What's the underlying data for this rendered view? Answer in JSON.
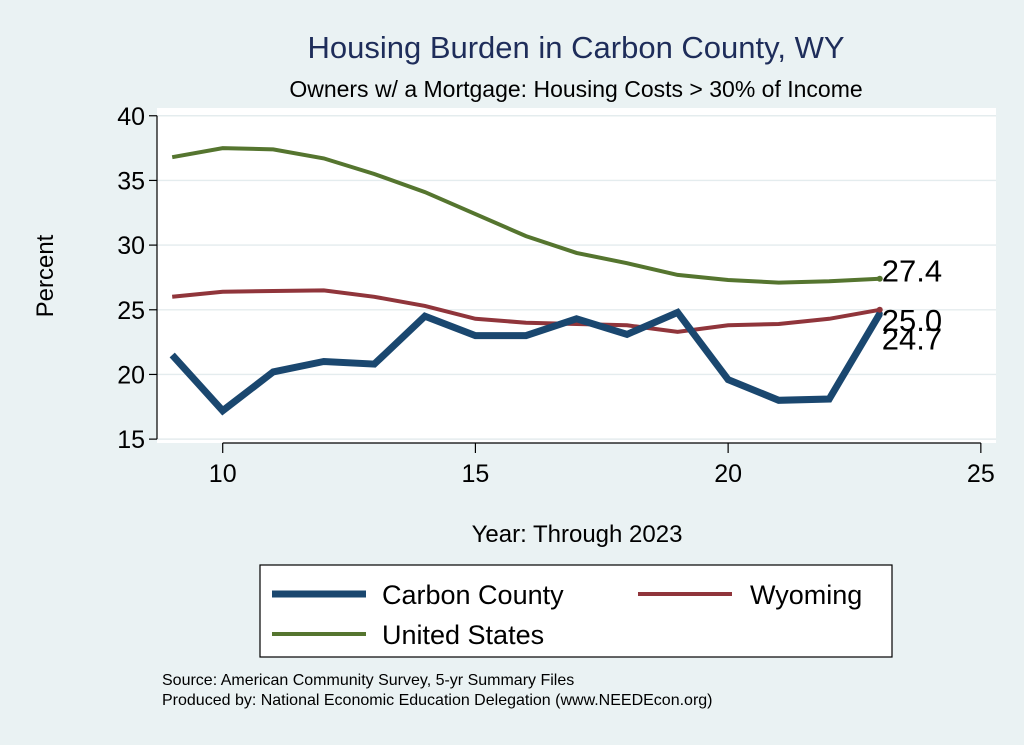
{
  "chart_data": {
    "type": "line",
    "title": "Housing Burden in Carbon County, WY",
    "subtitle": "Owners w/ a Mortgage: Housing Costs > 30% of Income",
    "xlabel": "Year: Through 2023",
    "ylabel": "Percent",
    "xlim": [
      8.7,
      25.3
    ],
    "ylim": [
      14.7,
      40.6
    ],
    "xticks": [
      10,
      15,
      20,
      25
    ],
    "yticks": [
      15,
      20,
      25,
      30,
      35,
      40
    ],
    "grid": true,
    "x": [
      9,
      10,
      11,
      12,
      13,
      14,
      15,
      16,
      17,
      18,
      19,
      20,
      21,
      22,
      23
    ],
    "series": [
      {
        "name": "Carbon County",
        "color": "#1a476f",
        "values": [
          21.5,
          17.2,
          20.2,
          21.0,
          20.8,
          24.5,
          23.0,
          23.0,
          24.3,
          23.1,
          24.8,
          19.6,
          18.0,
          18.1,
          24.7
        ],
        "end_label": "24.7"
      },
      {
        "name": "Wyoming",
        "color": "#90353b",
        "values": [
          26.0,
          26.4,
          26.45,
          26.5,
          26.0,
          25.3,
          24.3,
          24.0,
          23.9,
          23.8,
          23.3,
          23.8,
          23.9,
          24.3,
          25.0
        ],
        "end_label": "25.0"
      },
      {
        "name": "United States",
        "color": "#55752f",
        "values": [
          36.8,
          37.5,
          37.4,
          36.7,
          35.5,
          34.1,
          32.4,
          30.7,
          29.4,
          28.6,
          27.7,
          27.3,
          27.1,
          27.2,
          27.4
        ],
        "end_label": "27.4"
      }
    ]
  },
  "footer": {
    "source": "Source: American Community Survey, 5-yr Summary Files",
    "produced": "Produced by: National Economic Education Delegation (www.NEEDEcon.org)"
  }
}
